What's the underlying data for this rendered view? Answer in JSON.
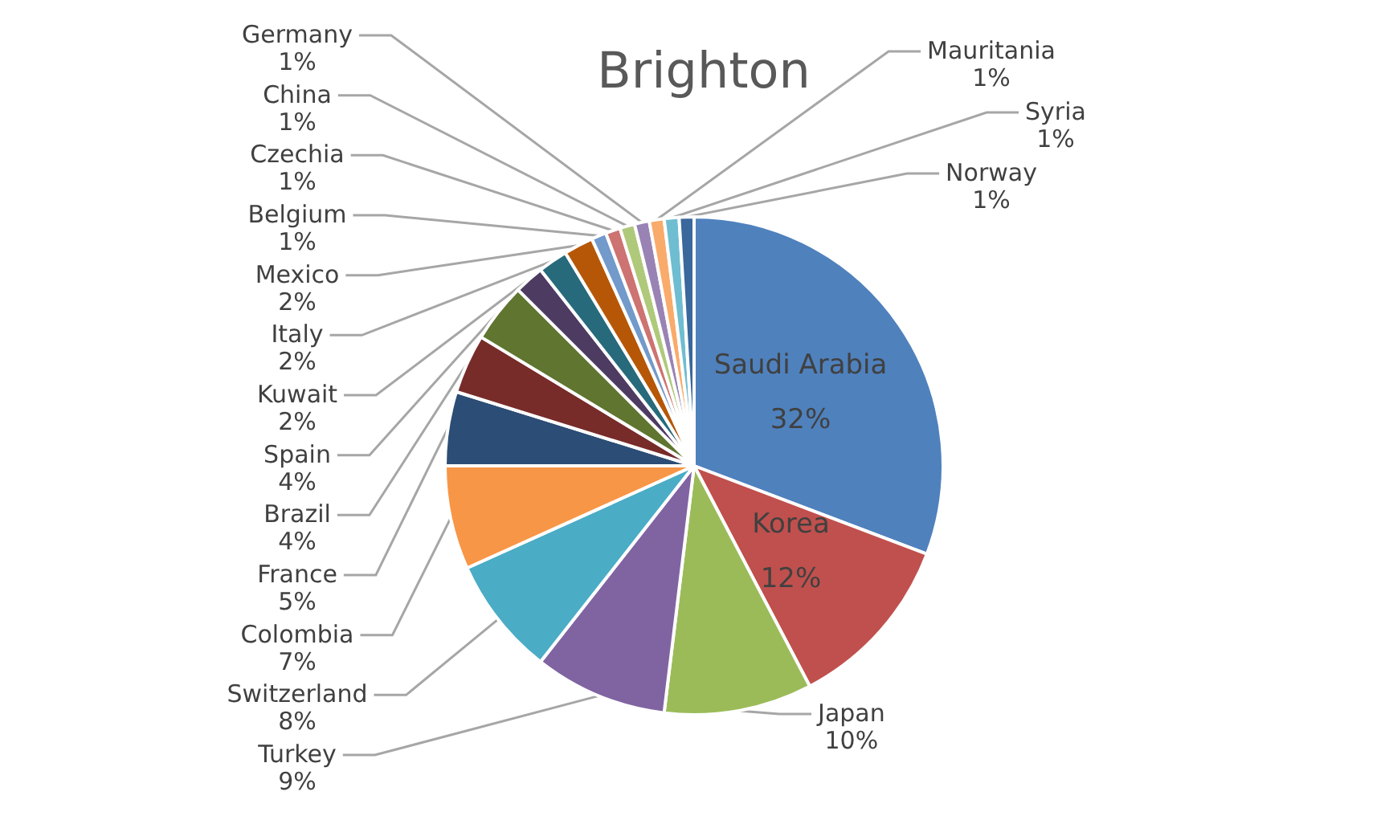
{
  "chart_data": {
    "type": "pie",
    "title": "Brighton",
    "categories": [
      "Saudi Arabia",
      "Korea",
      "Japan",
      "Turkey",
      "Switzerland",
      "Colombia",
      "France",
      "Brazil",
      "Spain",
      "Kuwait",
      "Italy",
      "Mexico",
      "Belgium",
      "Czechia",
      "China",
      "Germany",
      "Mauritania",
      "Syria",
      "Norway"
    ],
    "values": [
      32,
      12,
      10,
      9,
      8,
      7,
      5,
      4,
      4,
      2,
      2,
      2,
      1,
      1,
      1,
      1,
      1,
      1,
      1
    ],
    "value_labels": [
      "32%",
      "12%",
      "10%",
      "9%",
      "8%",
      "7%",
      "5%",
      "4%",
      "4%",
      "2%",
      "2%",
      "2%",
      "1%",
      "1%",
      "1%",
      "1%",
      "1%",
      "1%",
      "1%"
    ],
    "colors": [
      "#4f81bd",
      "#c0504d",
      "#9bbb59",
      "#8064a2",
      "#4bacc6",
      "#f79646",
      "#2c4d75",
      "#772c2a",
      "#5f7530",
      "#4d3b62",
      "#276a7c",
      "#b65708",
      "#729aca",
      "#cd7371",
      "#afc97a",
      "#9983b5",
      "#f9ab6b",
      "#6fbdd1",
      "#3a679c"
    ],
    "legend": false
  }
}
